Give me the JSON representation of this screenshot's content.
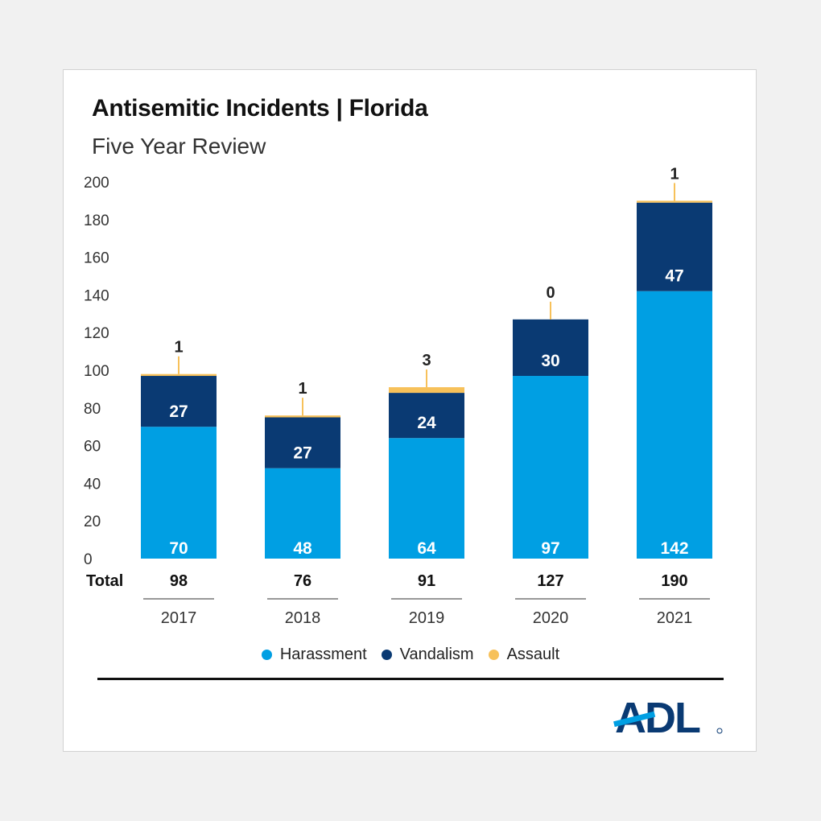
{
  "header": {
    "title": "Antisemitic Incidents | Florida",
    "subtitle": "Five Year Review"
  },
  "colors": {
    "harassment": "#009fe3",
    "vandalism": "#0a3a73",
    "assault": "#f7c15a",
    "axis_text": "#333333"
  },
  "chart_data": {
    "type": "bar",
    "stacked": true,
    "categories": [
      "2017",
      "2018",
      "2019",
      "2020",
      "2021"
    ],
    "series": [
      {
        "name": "Harassment",
        "values": [
          70,
          48,
          64,
          97,
          142
        ]
      },
      {
        "name": "Vandalism",
        "values": [
          27,
          27,
          24,
          30,
          47
        ]
      },
      {
        "name": "Assault",
        "values": [
          1,
          1,
          3,
          0,
          1
        ]
      }
    ],
    "totals_label": "Total",
    "totals": [
      98,
      76,
      91,
      127,
      190
    ],
    "ylim": [
      0,
      200
    ],
    "yticks": [
      0,
      20,
      40,
      60,
      80,
      100,
      120,
      140,
      160,
      180,
      200
    ],
    "legend_position": "bottom"
  },
  "brand": {
    "logo_text": "ADL"
  }
}
